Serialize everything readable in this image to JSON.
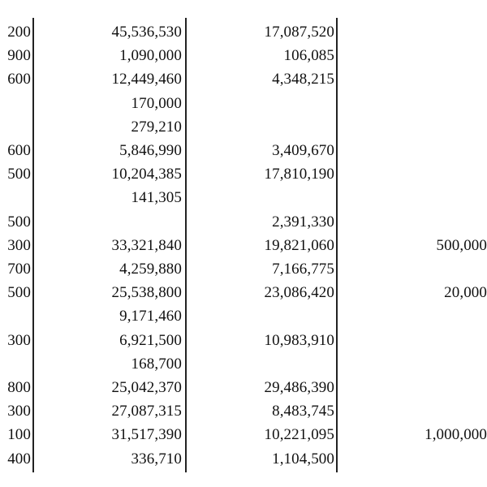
{
  "rows": [
    [
      "200",
      "45,536,530",
      "17,087,520",
      ""
    ],
    [
      "900",
      "1,090,000",
      "106,085",
      ""
    ],
    [
      "600",
      "12,449,460",
      "4,348,215",
      ""
    ],
    [
      "",
      "170,000",
      "",
      ""
    ],
    [
      "",
      "279,210",
      "",
      ""
    ],
    [
      "600",
      "5,846,990",
      "3,409,670",
      ""
    ],
    [
      "500",
      "10,204,385",
      "17,810,190",
      ""
    ],
    [
      "",
      "141,305",
      "",
      ""
    ],
    [
      "500",
      "",
      "2,391,330",
      ""
    ],
    [
      "300",
      "33,321,840",
      "19,821,060",
      "500,000"
    ],
    [
      "700",
      "4,259,880",
      "7,166,775",
      ""
    ],
    [
      "500",
      "25,538,800",
      "23,086,420",
      "20,000"
    ],
    [
      "",
      "9,171,460",
      "",
      ""
    ],
    [
      "300",
      "6,921,500",
      "10,983,910",
      ""
    ],
    [
      "",
      "168,700",
      "",
      ""
    ],
    [
      "800",
      "25,042,370",
      "29,486,390",
      ""
    ],
    [
      "300",
      "27,087,315",
      "8,483,745",
      ""
    ],
    [
      "100",
      "31,517,390",
      "10,221,095",
      "1,000,000"
    ],
    [
      "400",
      "336,710",
      "1,104,500",
      ""
    ]
  ]
}
